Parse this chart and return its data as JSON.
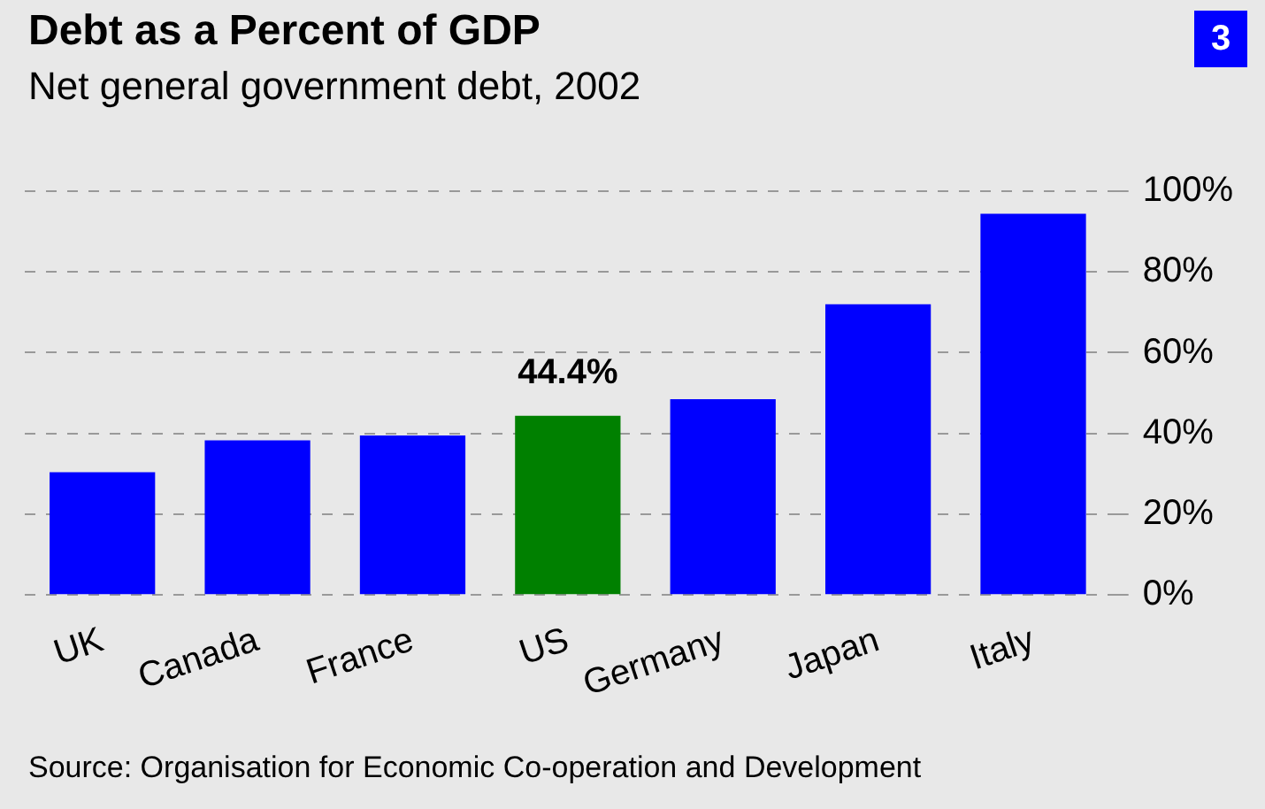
{
  "chart_data": {
    "type": "bar",
    "title": "Debt as a Percent of GDP",
    "subtitle": "Net general government debt, 2002",
    "annotations": [
      "3",
      "Source: Organisation for Economic Co-operation and Development"
    ],
    "categories": [
      "UK",
      "Canada",
      "France",
      "US",
      "Germany",
      "Japan",
      "Italy"
    ],
    "values": [
      30.4,
      38.3,
      39.5,
      44.4,
      48.5,
      72,
      94.4
    ],
    "colors": [
      "#0000ff",
      "#0000ff",
      "#0000ff",
      "#008000",
      "#0000ff",
      "#0000ff",
      "#0000ff"
    ],
    "value_labels": [
      null,
      null,
      null,
      "44.4%",
      null,
      null,
      null
    ],
    "ylim": [
      0,
      100
    ],
    "yticks": [
      {
        "value": 0,
        "label": "0%"
      },
      {
        "value": 20,
        "label": "20%"
      },
      {
        "value": 40,
        "label": "40%"
      },
      {
        "value": 60,
        "label": "60%"
      },
      {
        "value": 80,
        "label": "80%"
      },
      {
        "value": 100,
        "label": "100%"
      }
    ],
    "grid": "y",
    "legend": false
  }
}
